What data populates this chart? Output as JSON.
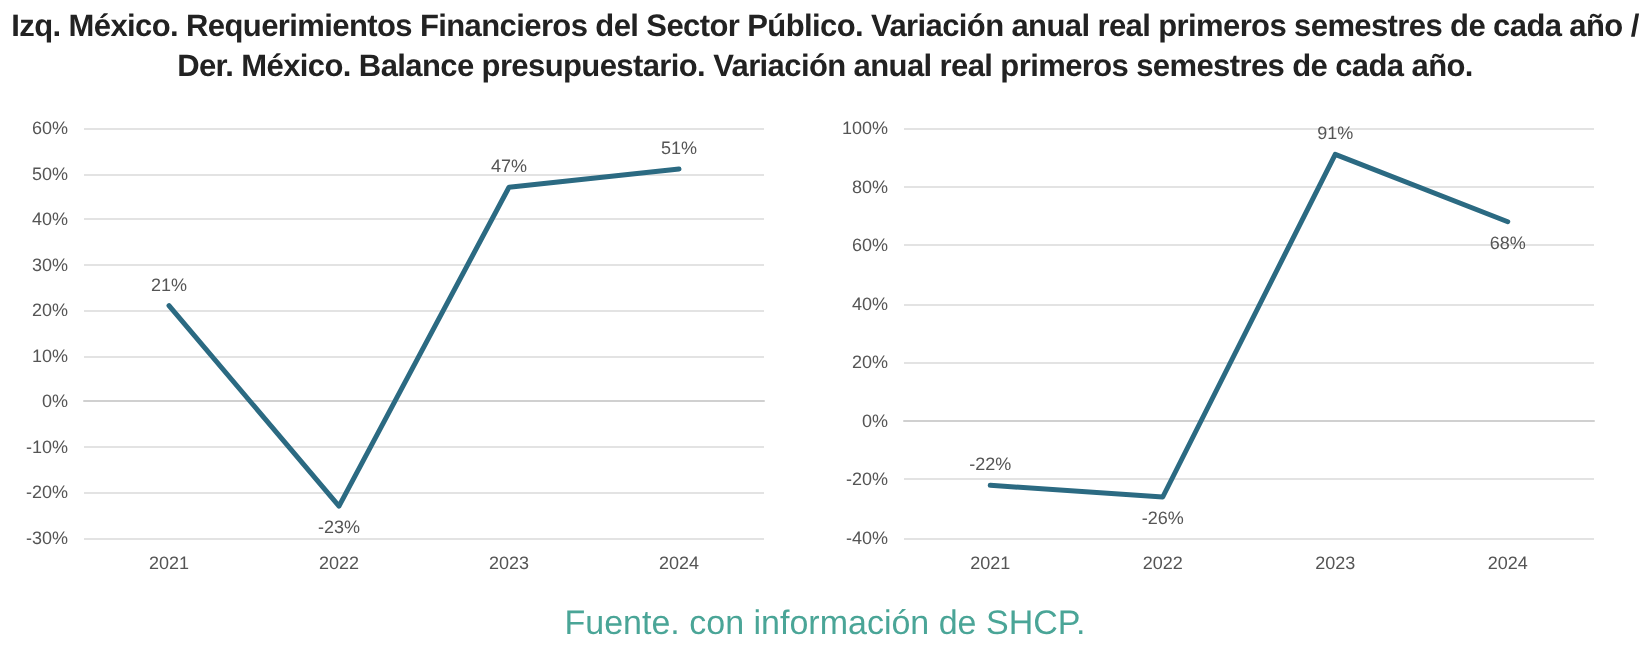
{
  "chart_data": [
    {
      "type": "line",
      "title": "Izq. México. Requerimientos Financieros del Sector Público. Variación anual real primeros semestres de cada año / Der. México. Balance presupuestario. Variación anual real primeros semestres de cada año.",
      "categories": [
        "2021",
        "2022",
        "2023",
        "2024"
      ],
      "series": [
        {
          "color": "#2b6a82",
          "values": [
            21,
            -23,
            47,
            51
          ],
          "value_labels": [
            "21%",
            "-23%",
            "47%",
            "51%"
          ]
        }
      ],
      "ylim": [
        -30,
        60
      ],
      "yticks": [
        {
          "value": -30,
          "label": "-30%"
        },
        {
          "value": -20,
          "label": "-20%"
        },
        {
          "value": -10,
          "label": "-10%"
        },
        {
          "value": 0,
          "label": "0%"
        },
        {
          "value": 10,
          "label": "10%"
        },
        {
          "value": 20,
          "label": "20%"
        },
        {
          "value": 30,
          "label": "30%"
        },
        {
          "value": 40,
          "label": "40%"
        },
        {
          "value": 50,
          "label": "50%"
        },
        {
          "value": 60,
          "label": "60%"
        }
      ],
      "grid": "y",
      "marker": "none",
      "line_style": "solid"
    },
    {
      "type": "line",
      "categories": [
        "2021",
        "2022",
        "2023",
        "2024"
      ],
      "series": [
        {
          "color": "#2b6a82",
          "values": [
            -22,
            -26,
            91,
            68
          ],
          "value_labels": [
            "-22%",
            "-26%",
            "91%",
            "68%"
          ]
        }
      ],
      "ylim": [
        -40,
        100
      ],
      "yticks": [
        {
          "value": -40,
          "label": "-40%"
        },
        {
          "value": -20,
          "label": "-20%"
        },
        {
          "value": 0,
          "label": "0%"
        },
        {
          "value": 20,
          "label": "20%"
        },
        {
          "value": 40,
          "label": "40%"
        },
        {
          "value": 60,
          "label": "60%"
        },
        {
          "value": 80,
          "label": "80%"
        },
        {
          "value": 100,
          "label": "100%"
        }
      ],
      "grid": "y",
      "marker": "none",
      "line_style": "solid",
      "annotations": [
        "Fuente. con información de SHCP."
      ]
    }
  ]
}
